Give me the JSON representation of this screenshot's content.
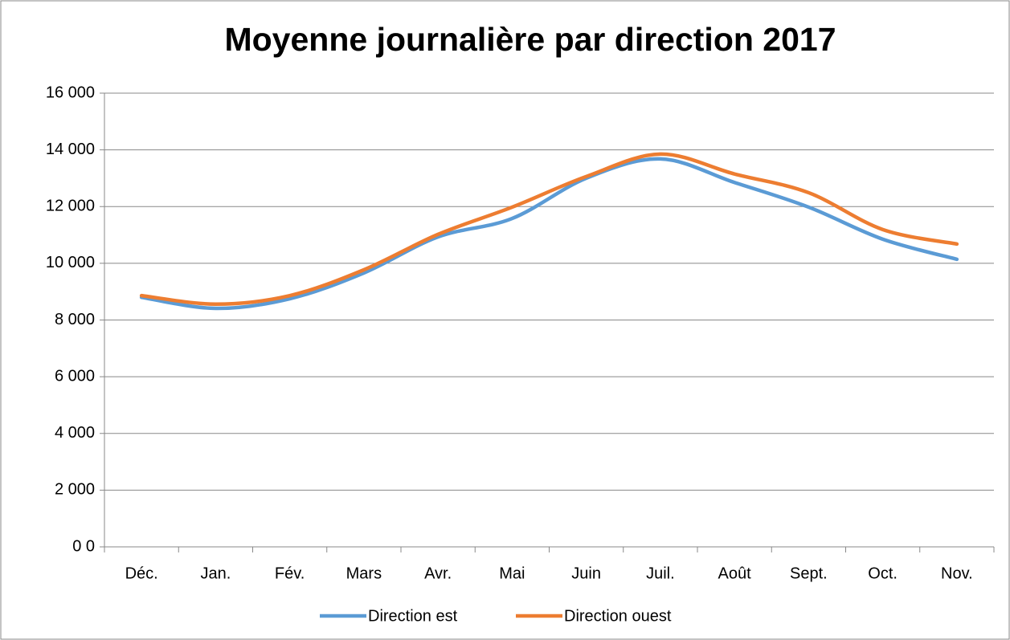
{
  "chart_data": {
    "type": "line",
    "title": "Moyenne journalière par direction 2017",
    "categories": [
      "Déc.",
      "Jan.",
      "Fév.",
      "Mars",
      "Avr.",
      "Mai",
      "Juin",
      "Juil.",
      "Août",
      "Sept.",
      "Oct.",
      "Nov."
    ],
    "series": [
      {
        "name": "Direction est",
        "color": "#5b9bd5",
        "values": [
          8800,
          8410,
          8750,
          9660,
          10930,
          11580,
          13000,
          13680,
          12850,
          11980,
          10850,
          10140
        ]
      },
      {
        "name": "Direction ouest",
        "color": "#ed7d31",
        "values": [
          8860,
          8560,
          8860,
          9770,
          11020,
          11980,
          13060,
          13850,
          13150,
          12490,
          11190,
          10680
        ]
      }
    ],
    "ylim": [
      0,
      16000
    ],
    "yticks": [
      {
        "value": 0,
        "label": "0 0"
      },
      {
        "value": 2000,
        "label": "2 000"
      },
      {
        "value": 4000,
        "label": "4 000"
      },
      {
        "value": 6000,
        "label": "6 000"
      },
      {
        "value": 8000,
        "label": "8 000"
      },
      {
        "value": 10000,
        "label": "10 000"
      },
      {
        "value": 12000,
        "label": "12 000"
      },
      {
        "value": 14000,
        "label": "14 000"
      },
      {
        "value": 16000,
        "label": "16 000"
      }
    ],
    "grid": true,
    "smooth": true,
    "legend": "bottom"
  }
}
